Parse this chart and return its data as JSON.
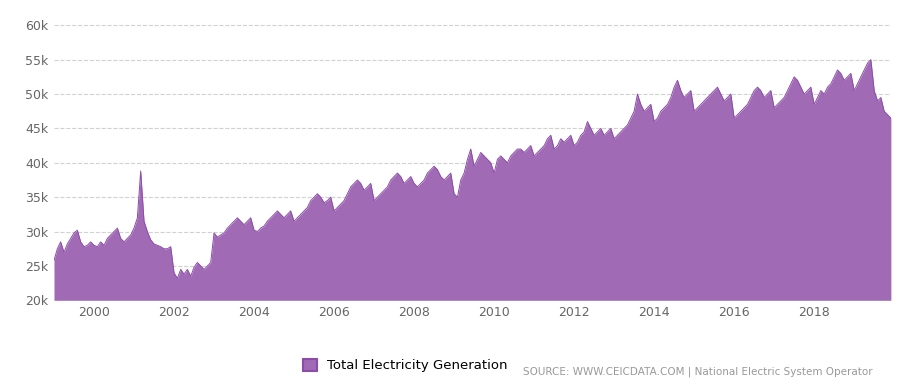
{
  "legend_label": "Total Electricity Generation",
  "source_text": "SOURCE: WWW.CEICDATA.COM | National Electric System Operator",
  "fill_color": "#a06ab4",
  "line_color": "#8b4da8",
  "background_color": "#ffffff",
  "ylim": [
    20000,
    62000
  ],
  "yticks": [
    20000,
    25000,
    30000,
    35000,
    40000,
    45000,
    50000,
    55000,
    60000
  ],
  "ytick_labels": [
    "20k",
    "25k",
    "30k",
    "35k",
    "40k",
    "45k",
    "50k",
    "55k",
    "60k"
  ],
  "monthly_data": [
    25800,
    27500,
    28500,
    27000,
    28200,
    29000,
    29800,
    30200,
    28500,
    27800,
    28000,
    28500,
    28000,
    27800,
    28500,
    28000,
    29000,
    29500,
    30000,
    30500,
    29000,
    28500,
    29000,
    29500,
    30500,
    32000,
    38800,
    31500,
    30000,
    28800,
    28200,
    28000,
    27800,
    27500,
    27500,
    27800,
    24000,
    23200,
    24500,
    23800,
    24500,
    23500,
    24800,
    25500,
    25000,
    24500,
    25000,
    25500,
    29800,
    29200,
    29500,
    29800,
    30500,
    31000,
    31500,
    32000,
    31500,
    31000,
    31500,
    32000,
    30200,
    30000,
    30500,
    30800,
    31500,
    32000,
    32500,
    33000,
    32500,
    32000,
    32500,
    33000,
    31500,
    32000,
    32500,
    33000,
    33500,
    34500,
    35000,
    35500,
    35000,
    34200,
    34500,
    35000,
    33000,
    33500,
    34000,
    34500,
    35500,
    36500,
    37000,
    37500,
    37000,
    36000,
    36500,
    37000,
    34500,
    35000,
    35500,
    36000,
    36500,
    37500,
    38000,
    38500,
    38000,
    37000,
    37500,
    38000,
    37000,
    36500,
    37000,
    37500,
    38500,
    39000,
    39500,
    39000,
    38000,
    37500,
    38000,
    38500,
    35500,
    35000,
    37500,
    38500,
    40500,
    42000,
    39500,
    40500,
    41500,
    41000,
    40500,
    40000,
    38500,
    40500,
    41000,
    40500,
    40000,
    41000,
    41500,
    42000,
    42000,
    41500,
    42000,
    42500,
    41000,
    41500,
    42000,
    42500,
    43500,
    44000,
    42000,
    42500,
    43500,
    43000,
    43500,
    44000,
    42500,
    43000,
    44000,
    44500,
    46000,
    45000,
    44000,
    44500,
    45000,
    44000,
    44500,
    45000,
    43500,
    44000,
    44500,
    45000,
    45500,
    46500,
    47500,
    50000,
    48500,
    47500,
    48000,
    48500,
    46000,
    46500,
    47500,
    48000,
    48500,
    49500,
    51000,
    52000,
    50500,
    49500,
    50000,
    50500,
    47500,
    48000,
    48500,
    49000,
    49500,
    50000,
    50500,
    51000,
    50000,
    49000,
    49500,
    50000,
    46500,
    47000,
    47500,
    48000,
    48500,
    49500,
    50500,
    51000,
    50500,
    49500,
    50000,
    50500,
    48000,
    48500,
    49000,
    49500,
    50500,
    51500,
    52500,
    52000,
    51000,
    50000,
    50500,
    51000,
    48500,
    49500,
    50500,
    50000,
    51000,
    51500,
    52500,
    53500,
    53000,
    52000,
    52500,
    53000,
    50500,
    51500,
    52500,
    53500,
    54500,
    55000,
    50500,
    49000,
    49500,
    47500,
    47000,
    46500
  ],
  "start_year": 1999,
  "start_month": 1,
  "xlim_start": 1999.0,
  "xlim_end": 2019.92,
  "xtick_years": [
    2000,
    2002,
    2004,
    2006,
    2008,
    2010,
    2012,
    2014,
    2016,
    2018
  ]
}
